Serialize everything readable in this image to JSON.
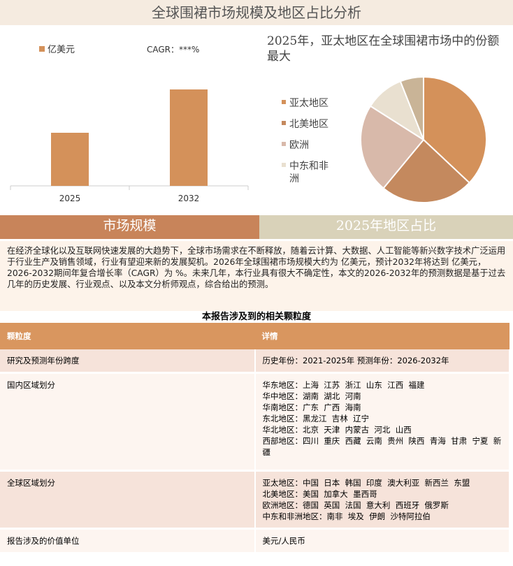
{
  "header": {
    "title": "全球围裙市场规模及地区占比分析"
  },
  "chart_data": [
    {
      "type": "bar",
      "categories": [
        "2025",
        "2032"
      ],
      "series": [
        {
          "name": "亿美元",
          "color": "#d4915a",
          "values": [
            76,
            138
          ]
        }
      ],
      "annotation": "CAGR：***%",
      "ylim": [
        0,
        150
      ]
    },
    {
      "type": "pie",
      "title": "2025年，亚太地区在全球围裙市场中的份额最大",
      "categories": [
        "亚太地区",
        "北美地区",
        "欧洲",
        "中东和非洲",
        null
      ],
      "values": [
        37,
        24,
        23,
        10,
        6
      ],
      "colors": [
        "#d4915a",
        "#c4895e",
        "#d8b9aa",
        "#e9e0d0",
        "#c9b497"
      ]
    }
  ],
  "sections": [
    "市场规模",
    "2025年地区占比"
  ],
  "paragraph": "在经济全球化以及互联网快速发展的大趋势下，全球市场需求在不断释放，随着云计算、大数据、人工智能等新兴数字技术广泛运用于行业生产及销售领域，行业有望迎来新的发展契机。2026年全球围裙市场规模大约为 亿美元，预计2032年将达到 亿美元，2026-2032期间年复合增长率（CAGR）为 %。未来几年，本行业具有很大不确定性，本文的2026-2032年的预测数据是基于过去几年的历史发展、行业观点、以及本文分析师观点，综合给出的预测。",
  "table": {
    "title": "本报告涉及到的相关颗粒度",
    "header": [
      "颗粒度",
      "详情"
    ],
    "rows": [
      [
        "研究及预测年份跨度",
        [
          "历史年份：2021-2025年 预测年份：2026-2032年"
        ]
      ],
      [
        "国内区域划分",
        [
          "华东地区：上海  江苏  浙江  山东  江西  福建",
          "华中地区：湖南  湖北  河南",
          "华南地区：广东  广西  海南",
          "东北地区：黑龙江  吉林  辽宁",
          "华北地区：北京  天津  内蒙古  河北  山西",
          "西部地区：四川  重庆  西藏  云南  贵州  陕西  青海  甘肃  宁夏  新疆"
        ]
      ],
      [
        "全球区域划分",
        [
          "亚太地区：中国  日本  韩国  印度  澳大利亚  新西兰  东盟",
          "北美地区：美国  加拿大  墨西哥",
          "欧洲地区：德国  英国  法国  意大利  西班牙  俄罗斯",
          "中东和非洲地区：南非  埃及  伊朗  沙特阿拉伯"
        ]
      ],
      [
        "报告涉及的价值单位",
        [
          "美元/人民币"
        ]
      ]
    ]
  }
}
